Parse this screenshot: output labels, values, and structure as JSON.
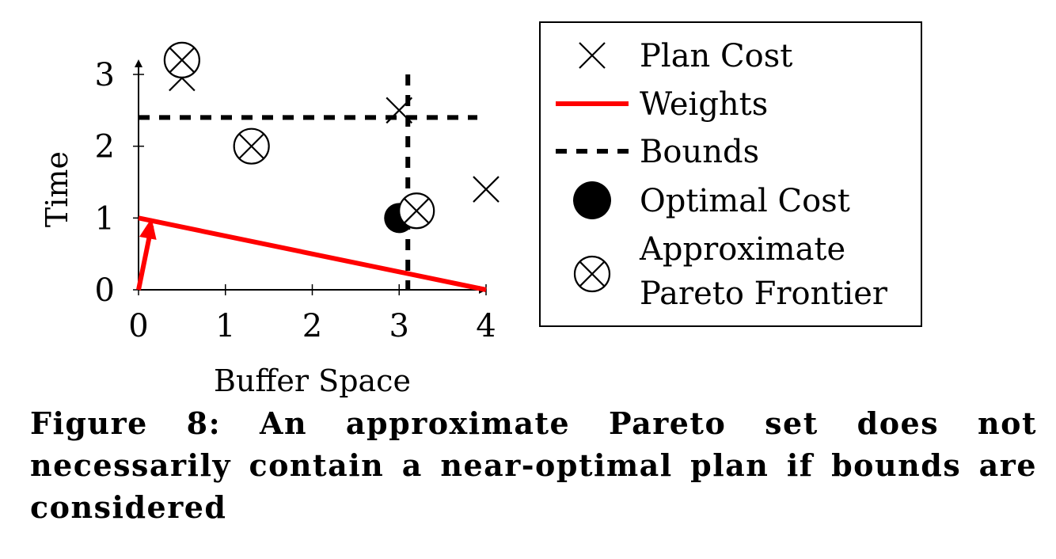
{
  "chart_data": {
    "type": "scatter",
    "xlabel": "Buffer Space",
    "ylabel": "Time",
    "xlim": [
      0,
      4
    ],
    "ylim": [
      0,
      3
    ],
    "x_ticks": [
      "0",
      "1",
      "2",
      "3",
      "4"
    ],
    "y_ticks": [
      "0",
      "1",
      "2",
      "3"
    ],
    "grid": false,
    "legend_position": "right",
    "colors": {
      "weights": "#ff0000",
      "marks": "#000000"
    },
    "series": [
      {
        "name": "Plan Cost",
        "marker": "x",
        "points": [
          [
            0.5,
            2.95
          ],
          [
            3.0,
            2.5
          ],
          [
            4.0,
            1.4
          ]
        ]
      },
      {
        "name": "Weights",
        "style": "red-solid",
        "line": [
          [
            0.0,
            1.0
          ],
          [
            4.0,
            0.0
          ]
        ],
        "arrow": {
          "from": [
            0.0,
            0.0
          ],
          "to": [
            0.15,
            1.0
          ]
        }
      },
      {
        "name": "Bounds",
        "style": "black-dashed",
        "horizontal_y": 2.4,
        "horizontal_x_range": [
          0.0,
          3.9
        ],
        "vertical_x": 3.1,
        "vertical_y_range": [
          0.0,
          3.0
        ]
      },
      {
        "name": "Optimal Cost",
        "marker": "filled-circle",
        "points": [
          [
            3.0,
            1.0
          ]
        ]
      },
      {
        "name": "Approximate Pareto Frontier",
        "marker": "circled-x",
        "points": [
          [
            0.5,
            3.2
          ],
          [
            1.3,
            2.0
          ],
          [
            3.2,
            1.1
          ]
        ]
      }
    ],
    "legend": [
      {
        "label": "Plan Cost",
        "symbol": "x"
      },
      {
        "label": "Weights",
        "symbol": "red-line"
      },
      {
        "label": "Bounds",
        "symbol": "dashed-line"
      },
      {
        "label": "Optimal Cost",
        "symbol": "filled-circle"
      },
      {
        "label_lines": [
          "Approximate",
          "Pareto Frontier"
        ],
        "symbol": "circled-x"
      }
    ]
  },
  "caption": "Figure 8: An approximate Pareto set does not necessarily contain a near-optimal plan if bounds are considered"
}
